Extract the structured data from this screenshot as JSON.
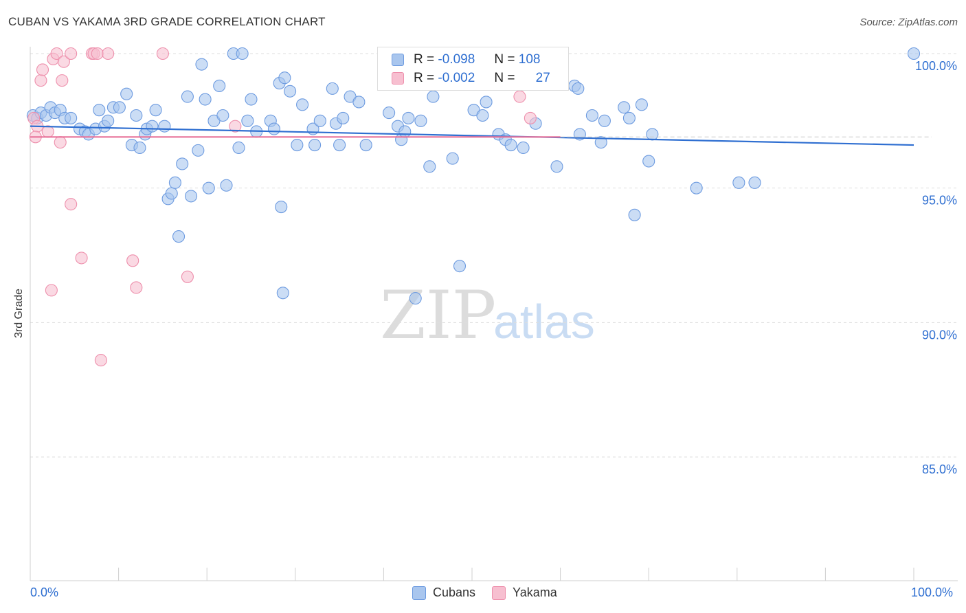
{
  "header": {
    "title": "CUBAN VS YAKAMA 3RD GRADE CORRELATION CHART",
    "source": "Source: ZipAtlas.com"
  },
  "legend": {
    "series1": {
      "r_label": "R =",
      "r_value": "-0.098",
      "n_label": "N =",
      "n_value": "108"
    },
    "series2": {
      "r_label": "R =",
      "r_value": "-0.002",
      "n_label": "N =",
      "n_value": "27"
    }
  },
  "bottom_legend": {
    "cubans": "Cubans",
    "yakama": "Yakama"
  },
  "x_labels": {
    "left": "0.0%",
    "right": "100.0%"
  },
  "colors": {
    "cubans_fill": "#a9c6ee",
    "cubans_stroke": "#6d9be0",
    "cubans_line": "#2f6fd1",
    "yakama_fill": "#f7bfd0",
    "yakama_stroke": "#ee8fac",
    "yakama_line": "#e8739a",
    "axis_label": "#2f6fd1",
    "grid": "#dddddd"
  },
  "chart_data": {
    "type": "scatter",
    "title": "CUBAN VS YAKAMA 3RD GRADE CORRELATION CHART",
    "xlabel": "",
    "ylabel": "3rd Grade",
    "xlim": [
      0,
      100
    ],
    "ylim": [
      80,
      100.5
    ],
    "y_ticks": [
      {
        "value": 100,
        "label": "100.0%"
      },
      {
        "value": 95,
        "label": "95.0%"
      },
      {
        "value": 90,
        "label": "90.0%"
      },
      {
        "value": 85,
        "label": "85.0%"
      }
    ],
    "watermark": {
      "zip": "ZIP",
      "atlas": "atlas"
    },
    "series": [
      {
        "name": "Cubans",
        "r": -0.098,
        "n": 108,
        "trend": {
          "x": [
            0,
            100
          ],
          "y": [
            97.3,
            96.6
          ]
        },
        "points": [
          [
            0.3,
            97.7
          ],
          [
            0.8,
            97.6
          ],
          [
            1.2,
            97.8
          ],
          [
            1.8,
            97.7
          ],
          [
            2.3,
            98.0
          ],
          [
            2.8,
            97.8
          ],
          [
            3.4,
            97.9
          ],
          [
            3.9,
            97.6
          ],
          [
            4.6,
            97.6
          ],
          [
            5.6,
            97.2
          ],
          [
            6.2,
            97.1
          ],
          [
            6.6,
            97.0
          ],
          [
            7.4,
            97.2
          ],
          [
            7.8,
            97.9
          ],
          [
            8.4,
            97.3
          ],
          [
            8.8,
            97.5
          ],
          [
            9.4,
            98.0
          ],
          [
            10.1,
            98.0
          ],
          [
            10.9,
            98.5
          ],
          [
            11.5,
            96.6
          ],
          [
            12.0,
            97.7
          ],
          [
            12.4,
            96.5
          ],
          [
            13.0,
            97.0
          ],
          [
            13.2,
            97.2
          ],
          [
            13.8,
            97.3
          ],
          [
            14.2,
            97.9
          ],
          [
            15.2,
            97.3
          ],
          [
            15.6,
            94.6
          ],
          [
            16.0,
            94.8
          ],
          [
            16.4,
            95.2
          ],
          [
            16.8,
            93.2
          ],
          [
            17.2,
            95.9
          ],
          [
            17.8,
            98.4
          ],
          [
            18.2,
            94.7
          ],
          [
            19.0,
            96.4
          ],
          [
            19.4,
            99.6
          ],
          [
            19.8,
            98.3
          ],
          [
            20.2,
            95.0
          ],
          [
            20.8,
            97.5
          ],
          [
            21.4,
            98.8
          ],
          [
            21.8,
            97.7
          ],
          [
            22.2,
            95.1
          ],
          [
            23.0,
            100.0
          ],
          [
            23.6,
            96.5
          ],
          [
            24.0,
            100.0
          ],
          [
            24.6,
            97.5
          ],
          [
            25.0,
            98.3
          ],
          [
            25.6,
            97.1
          ],
          [
            27.2,
            97.5
          ],
          [
            27.6,
            97.2
          ],
          [
            28.2,
            98.9
          ],
          [
            28.4,
            94.3
          ],
          [
            28.6,
            91.1
          ],
          [
            28.8,
            99.1
          ],
          [
            29.4,
            98.6
          ],
          [
            30.2,
            96.6
          ],
          [
            30.8,
            98.1
          ],
          [
            32.0,
            97.2
          ],
          [
            32.2,
            96.6
          ],
          [
            32.8,
            97.5
          ],
          [
            34.2,
            98.7
          ],
          [
            34.6,
            97.4
          ],
          [
            35.0,
            96.6
          ],
          [
            35.4,
            97.6
          ],
          [
            36.2,
            98.4
          ],
          [
            37.2,
            98.2
          ],
          [
            38.0,
            96.6
          ],
          [
            40.6,
            97.8
          ],
          [
            41.6,
            97.3
          ],
          [
            42.0,
            96.8
          ],
          [
            42.4,
            97.1
          ],
          [
            42.8,
            97.6
          ],
          [
            43.6,
            90.9
          ],
          [
            44.2,
            97.5
          ],
          [
            45.2,
            95.8
          ],
          [
            45.6,
            98.4
          ],
          [
            47.8,
            96.1
          ],
          [
            48.6,
            92.1
          ],
          [
            50.2,
            97.9
          ],
          [
            51.2,
            97.7
          ],
          [
            51.6,
            98.2
          ],
          [
            53.0,
            97.0
          ],
          [
            53.8,
            96.8
          ],
          [
            54.4,
            96.6
          ],
          [
            55.8,
            96.5
          ],
          [
            57.2,
            97.4
          ],
          [
            59.6,
            95.8
          ],
          [
            61.6,
            98.8
          ],
          [
            62.0,
            98.7
          ],
          [
            62.2,
            97.0
          ],
          [
            63.6,
            97.7
          ],
          [
            64.6,
            96.7
          ],
          [
            65.0,
            97.5
          ],
          [
            67.2,
            98.0
          ],
          [
            67.8,
            97.6
          ],
          [
            68.4,
            94.0
          ],
          [
            69.2,
            98.1
          ],
          [
            70.0,
            96.0
          ],
          [
            70.4,
            97.0
          ],
          [
            75.4,
            95.0
          ],
          [
            80.2,
            95.2
          ],
          [
            82.0,
            95.2
          ],
          [
            100.0,
            100.0
          ]
        ]
      },
      {
        "name": "Yakama",
        "r": -0.002,
        "n": 27,
        "trend": {
          "x": [
            0,
            60
          ],
          "y": [
            96.9,
            96.9
          ]
        },
        "points": [
          [
            0.4,
            97.6
          ],
          [
            0.8,
            97.3
          ],
          [
            1.2,
            99.0
          ],
          [
            1.4,
            99.4
          ],
          [
            2.0,
            97.1
          ],
          [
            2.4,
            91.2
          ],
          [
            2.6,
            99.8
          ],
          [
            3.0,
            100.0
          ],
          [
            3.4,
            96.7
          ],
          [
            3.6,
            99.0
          ],
          [
            3.8,
            99.7
          ],
          [
            4.6,
            100.0
          ],
          [
            4.6,
            94.4
          ],
          [
            5.8,
            92.4
          ],
          [
            7.0,
            100.0
          ],
          [
            7.2,
            100.0
          ],
          [
            7.6,
            100.0
          ],
          [
            8.0,
            88.6
          ],
          [
            8.8,
            100.0
          ],
          [
            11.6,
            92.3
          ],
          [
            12.0,
            91.3
          ],
          [
            15.0,
            100.0
          ],
          [
            17.8,
            91.7
          ],
          [
            23.2,
            97.3
          ],
          [
            55.4,
            98.4
          ],
          [
            56.6,
            97.6
          ],
          [
            0.6,
            96.9
          ]
        ]
      }
    ]
  }
}
